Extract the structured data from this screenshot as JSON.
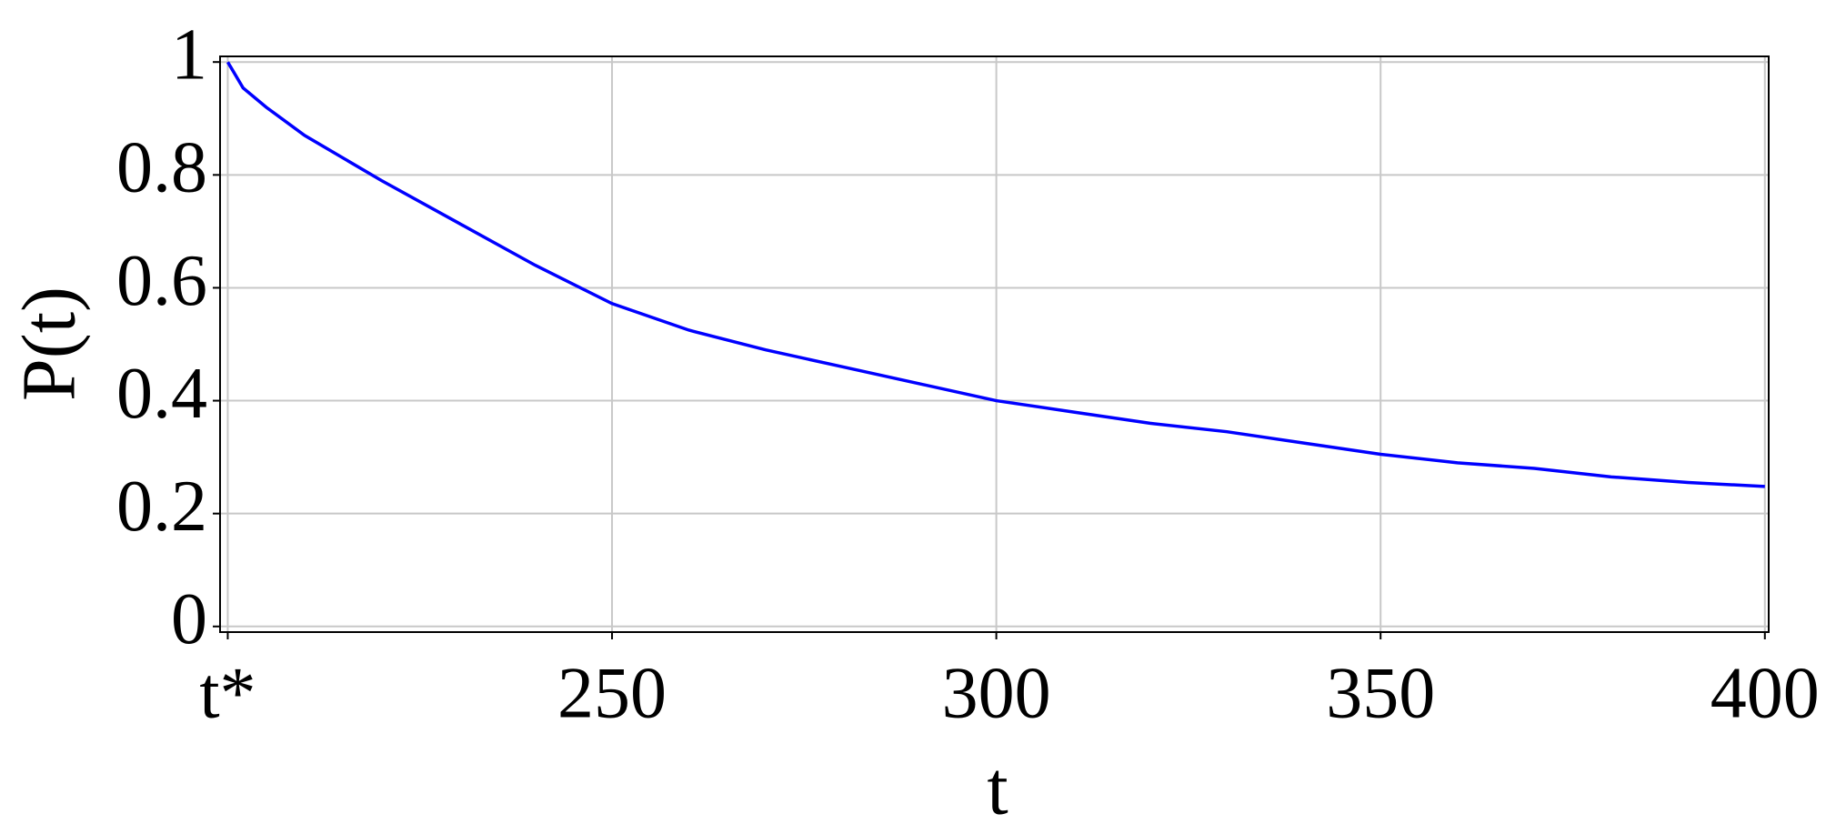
{
  "chart_data": {
    "type": "line",
    "x_label": "t",
    "y_label": "P(t)",
    "x": [
      200,
      202,
      205,
      210,
      220,
      230,
      240,
      250,
      260,
      270,
      280,
      290,
      300,
      310,
      320,
      330,
      340,
      350,
      360,
      370,
      380,
      390,
      400
    ],
    "values": [
      1.0,
      0.954,
      0.92,
      0.87,
      0.79,
      0.715,
      0.64,
      0.572,
      0.525,
      0.49,
      0.46,
      0.43,
      0.4,
      0.38,
      0.36,
      0.345,
      0.325,
      0.305,
      0.29,
      0.28,
      0.265,
      0.255,
      0.248
    ],
    "color": "#0000ff",
    "xlim": [
      199,
      400.5
    ],
    "ylim": [
      -0.01,
      1.01
    ],
    "xticks": [
      {
        "value": 200,
        "label": "t*"
      },
      250,
      300,
      350,
      400
    ],
    "yticks": [
      0,
      0.2,
      0.4,
      0.6,
      0.8,
      1
    ],
    "grid": true
  }
}
